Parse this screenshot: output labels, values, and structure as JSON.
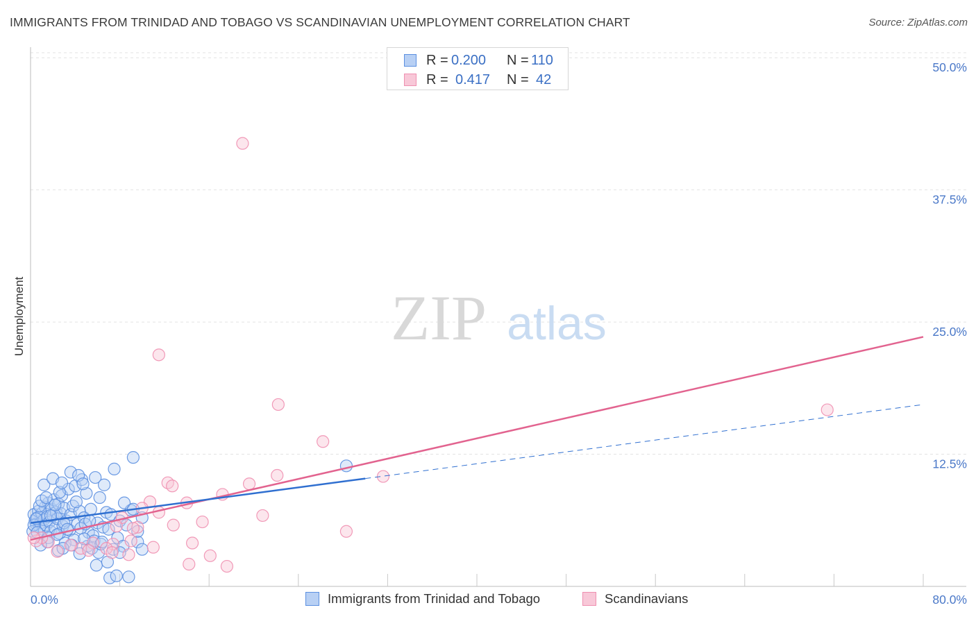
{
  "header": {
    "title": "IMMIGRANTS FROM TRINIDAD AND TOBAGO VS SCANDINAVIAN UNEMPLOYMENT CORRELATION CHART",
    "source": "Source: ZipAtlas.com"
  },
  "watermark": {
    "zip": "ZIP",
    "atlas": "atlas"
  },
  "colors": {
    "blue": "#5b8fe0",
    "blue_fill": "#b8d0f4",
    "blue_line": "#2f6fd0",
    "pink": "#ef8fb0",
    "pink_fill": "#f8c8d8",
    "pink_line": "#e2638f",
    "tick_text": "#4a78c8",
    "grid": "#e3e3e3"
  },
  "legend_top": {
    "r_label": "R =",
    "n_label": "N =",
    "rows": [
      {
        "r": "0.200",
        "n": "110"
      },
      {
        "r": "0.417",
        "n": "42"
      }
    ]
  },
  "chart_data": {
    "type": "scatter",
    "ylabel": "Unemployment",
    "x_ticks_labels": [
      "0.0%",
      "80.0%"
    ],
    "y_tick_labels": [
      "12.5%",
      "25.0%",
      "37.5%",
      "50.0%"
    ],
    "y_ticks": [
      12.5,
      25.0,
      37.5,
      50.0
    ],
    "xlim": [
      0,
      80
    ],
    "ylim": [
      0,
      51
    ],
    "grid": true,
    "legend_placement": "bottom",
    "series": [
      {
        "name": "Immigrants from Trinidad and Tobago",
        "color_key": "blue",
        "points": [
          [
            0.3,
            6.8
          ],
          [
            0.4,
            6.2
          ],
          [
            0.5,
            5.9
          ],
          [
            0.6,
            6.5
          ],
          [
            0.7,
            7.1
          ],
          [
            0.8,
            5.6
          ],
          [
            0.9,
            6.0
          ],
          [
            1.0,
            6.9
          ],
          [
            1.1,
            5.4
          ],
          [
            1.2,
            6.3
          ],
          [
            1.3,
            7.5
          ],
          [
            1.4,
            5.8
          ],
          [
            1.5,
            6.6
          ],
          [
            1.6,
            7.9
          ],
          [
            1.7,
            6.1
          ],
          [
            1.8,
            5.2
          ],
          [
            1.9,
            7.3
          ],
          [
            2.0,
            6.7
          ],
          [
            2.1,
            8.2
          ],
          [
            2.2,
            5.5
          ],
          [
            2.3,
            7.0
          ],
          [
            2.4,
            6.4
          ],
          [
            2.5,
            7.8
          ],
          [
            2.6,
            5.0
          ],
          [
            2.7,
            6.9
          ],
          [
            2.8,
            8.6
          ],
          [
            2.9,
            5.7
          ],
          [
            3.0,
            7.4
          ],
          [
            3.2,
            6.2
          ],
          [
            3.4,
            9.2
          ],
          [
            3.5,
            5.3
          ],
          [
            3.6,
            6.8
          ],
          [
            3.8,
            7.6
          ],
          [
            4.0,
            9.5
          ],
          [
            4.2,
            5.9
          ],
          [
            4.4,
            7.1
          ],
          [
            4.6,
            10.1
          ],
          [
            4.8,
            6.5
          ],
          [
            5.0,
            8.8
          ],
          [
            5.2,
            5.1
          ],
          [
            5.4,
            7.3
          ],
          [
            5.6,
            4.8
          ],
          [
            5.8,
            10.3
          ],
          [
            6.0,
            6.0
          ],
          [
            6.2,
            8.4
          ],
          [
            6.5,
            5.6
          ],
          [
            6.8,
            7.0
          ],
          [
            7.0,
            5.4
          ],
          [
            7.2,
            6.8
          ],
          [
            7.5,
            11.1
          ],
          [
            7.8,
            4.6
          ],
          [
            8.0,
            6.2
          ],
          [
            8.3,
            3.8
          ],
          [
            8.6,
            5.8
          ],
          [
            9.0,
            7.2
          ],
          [
            9.2,
            12.2
          ],
          [
            9.6,
            4.2
          ],
          [
            10.0,
            6.5
          ],
          [
            0.2,
            5.2
          ],
          [
            0.3,
            5.8
          ],
          [
            0.5,
            6.4
          ],
          [
            0.6,
            5.1
          ],
          [
            0.8,
            7.6
          ],
          [
            1.0,
            8.1
          ],
          [
            1.2,
            9.6
          ],
          [
            1.4,
            8.4
          ],
          [
            1.6,
            4.6
          ],
          [
            1.8,
            6.7
          ],
          [
            2.0,
            10.2
          ],
          [
            2.2,
            7.7
          ],
          [
            2.4,
            4.9
          ],
          [
            2.6,
            8.9
          ],
          [
            2.8,
            9.8
          ],
          [
            3.0,
            6.0
          ],
          [
            3.3,
            5.4
          ],
          [
            3.6,
            10.8
          ],
          [
            3.9,
            4.4
          ],
          [
            4.1,
            8.0
          ],
          [
            4.3,
            10.5
          ],
          [
            4.5,
            5.5
          ],
          [
            4.7,
            9.7
          ],
          [
            4.9,
            5.9
          ],
          [
            5.1,
            3.8
          ],
          [
            5.3,
            6.2
          ],
          [
            5.5,
            3.6
          ],
          [
            5.7,
            4.3
          ],
          [
            5.9,
            2.0
          ],
          [
            6.1,
            3.2
          ],
          [
            6.3,
            4.0
          ],
          [
            6.6,
            9.6
          ],
          [
            6.9,
            2.3
          ],
          [
            7.1,
            0.8
          ],
          [
            7.4,
            3.5
          ],
          [
            7.7,
            1.0
          ],
          [
            8.0,
            3.2
          ],
          [
            8.4,
            7.9
          ],
          [
            8.8,
            0.9
          ],
          [
            9.2,
            7.3
          ],
          [
            9.6,
            5.2
          ],
          [
            10.0,
            3.5
          ],
          [
            28.3,
            11.4
          ],
          [
            3.1,
            4.1
          ],
          [
            3.7,
            3.9
          ],
          [
            4.4,
            3.1
          ],
          [
            2.5,
            3.4
          ],
          [
            1.5,
            4.2
          ],
          [
            0.9,
            3.9
          ],
          [
            2.9,
            3.6
          ],
          [
            4.8,
            4.5
          ],
          [
            6.4,
            4.2
          ]
        ]
      },
      {
        "name": "Scandinavians",
        "color_key": "pink",
        "points": [
          [
            19.0,
            41.9
          ],
          [
            11.5,
            21.9
          ],
          [
            22.2,
            17.2
          ],
          [
            26.2,
            13.7
          ],
          [
            71.4,
            16.7
          ],
          [
            31.6,
            10.4
          ],
          [
            12.3,
            9.8
          ],
          [
            12.7,
            9.5
          ],
          [
            19.6,
            9.7
          ],
          [
            22.1,
            10.5
          ],
          [
            17.2,
            8.7
          ],
          [
            10.7,
            8.0
          ],
          [
            14.0,
            7.9
          ],
          [
            10.0,
            7.4
          ],
          [
            11.5,
            7.0
          ],
          [
            20.8,
            6.7
          ],
          [
            15.4,
            6.1
          ],
          [
            28.3,
            5.2
          ],
          [
            8.2,
            6.5
          ],
          [
            7.7,
            5.7
          ],
          [
            9.6,
            5.6
          ],
          [
            14.5,
            4.1
          ],
          [
            9.0,
            4.3
          ],
          [
            7.4,
            4.0
          ],
          [
            6.8,
            3.6
          ],
          [
            5.6,
            4.1
          ],
          [
            4.5,
            3.6
          ],
          [
            3.6,
            3.9
          ],
          [
            2.4,
            3.3
          ],
          [
            1.6,
            4.2
          ],
          [
            1.0,
            4.6
          ],
          [
            0.5,
            4.3
          ],
          [
            0.3,
            4.6
          ],
          [
            11.0,
            3.7
          ],
          [
            8.8,
            3.0
          ],
          [
            7.3,
            3.2
          ],
          [
            5.2,
            3.4
          ],
          [
            16.1,
            2.9
          ],
          [
            17.6,
            1.9
          ],
          [
            14.2,
            2.1
          ],
          [
            9.2,
            5.5
          ],
          [
            12.8,
            5.8
          ]
        ]
      }
    ],
    "trend_lines": [
      {
        "series": "Immigrants from Trinidad and Tobago",
        "x": [
          0,
          30
        ],
        "y": [
          6.0,
          10.2
        ],
        "dashed_extension_to_x": 80,
        "dashed_extension_y": 17.2
      },
      {
        "series": "Scandinavians",
        "x": [
          0,
          80
        ],
        "y": [
          4.4,
          23.6
        ]
      }
    ]
  },
  "legend_bottom": [
    {
      "label": "Immigrants from Trinidad and Tobago",
      "color_key": "blue"
    },
    {
      "label": "Scandinavians",
      "color_key": "pink"
    }
  ]
}
